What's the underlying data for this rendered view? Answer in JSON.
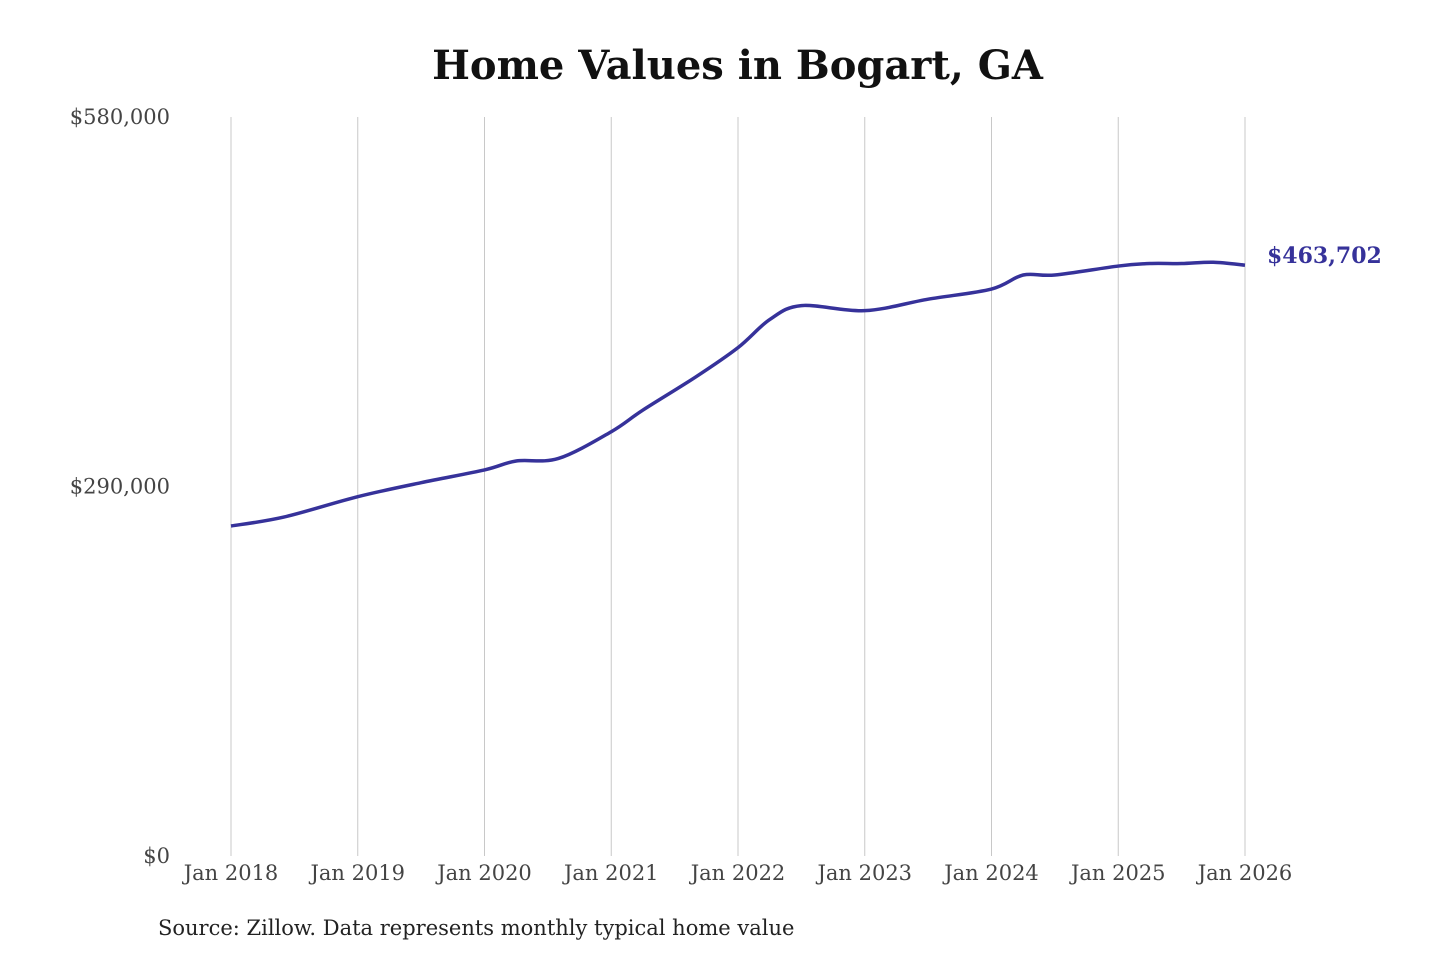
{
  "chart_data": {
    "type": "line",
    "title": "Home Values in Bogart, GA",
    "source": "Source: Zillow. Data represents monthly typical home value",
    "xlabel": "",
    "ylabel": "",
    "ylim": [
      0,
      580000
    ],
    "y_ticks": [
      {
        "value": 0,
        "label": "$0"
      },
      {
        "value": 290000,
        "label": "$290,000"
      },
      {
        "value": 580000,
        "label": "$580,000"
      }
    ],
    "x_ticks": [
      "Jan 2018",
      "Jan 2019",
      "Jan 2020",
      "Jan 2021",
      "Jan 2022",
      "Jan 2023",
      "Jan 2024",
      "Jan 2025",
      "Jan 2026"
    ],
    "grid": "vertical",
    "line_color": "#36329a",
    "end_label": "$463,702",
    "series": [
      {
        "x": [
          "2018-01",
          "2018-06",
          "2019-01",
          "2019-07",
          "2020-01",
          "2020-04",
          "2020-08",
          "2021-01",
          "2021-04",
          "2021-09",
          "2022-01",
          "2022-04",
          "2022-07",
          "2023-01",
          "2023-07",
          "2024-01",
          "2024-04",
          "2024-07",
          "2025-01",
          "2025-04",
          "2025-07",
          "2025-10",
          "2026-01"
        ],
        "values": [
          259000,
          266000,
          282000,
          293000,
          303000,
          310000,
          312000,
          333000,
          350000,
          376000,
          399000,
          421000,
          432000,
          428000,
          437000,
          445000,
          456000,
          456000,
          463000,
          465000,
          465000,
          466000,
          463702
        ]
      }
    ]
  }
}
